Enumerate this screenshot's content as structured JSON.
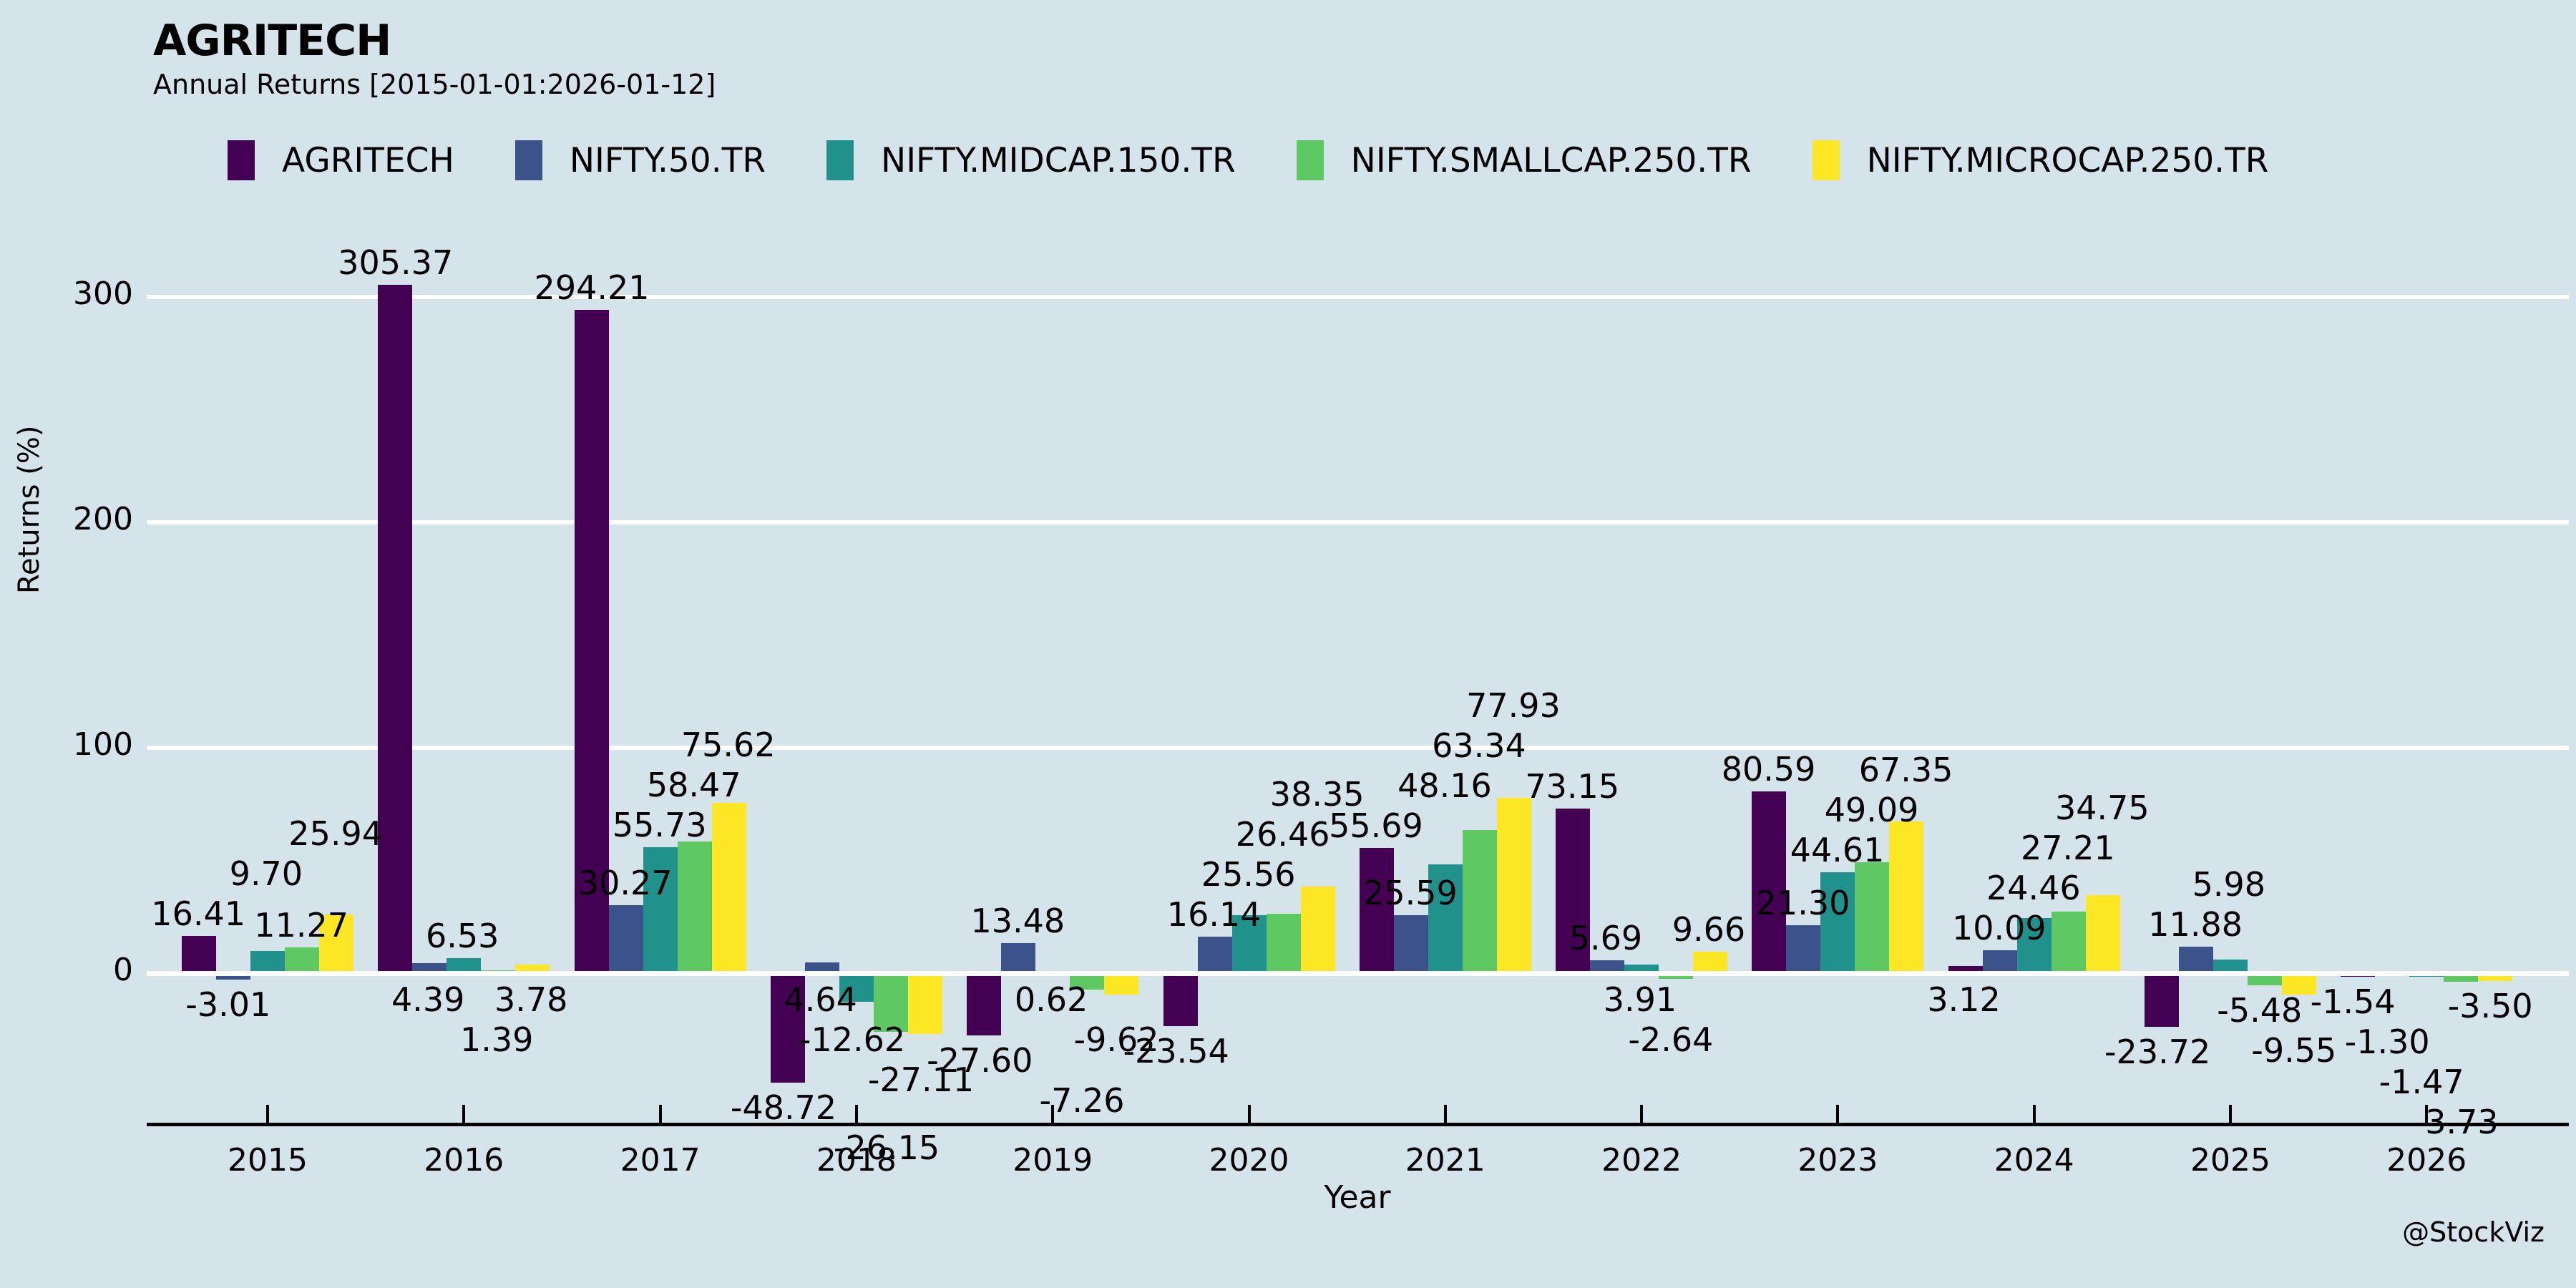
{
  "header": {
    "title": "AGRITECH",
    "subtitle": "Annual Returns [2015-01-01:2026-01-12]"
  },
  "watermark": "@StockViz",
  "colors": {
    "background": "#d5e3ea",
    "gridline": "#ffffff",
    "axis": "#000000",
    "text": "#000000"
  },
  "chart_data": {
    "type": "bar",
    "title": "AGRITECH",
    "subtitle": "Annual Returns [2015-01-01:2026-01-12]",
    "xlabel": "Year",
    "ylabel": "Returns (%)",
    "categories": [
      "2015",
      "2016",
      "2017",
      "2018",
      "2019",
      "2020",
      "2021",
      "2022",
      "2023",
      "2024",
      "2025",
      "2026"
    ],
    "yticks": [
      0,
      100,
      200,
      300
    ],
    "ylim": [
      -67,
      327
    ],
    "grid": "horizontal white gridlines, white zero line drawn over bars",
    "legend_position": "top",
    "value_labels": "every bar labeled with value to 2 decimals",
    "series": [
      {
        "name": "AGRITECH",
        "color": "#440154",
        "values": [
          16.41,
          305.37,
          294.21,
          -48.72,
          -27.6,
          -23.54,
          55.69,
          73.15,
          80.59,
          3.12,
          -23.72,
          -1.54
        ]
      },
      {
        "name": "NIFTY.50.TR",
        "color": "#3b528b",
        "values": [
          -3.01,
          4.39,
          30.27,
          4.64,
          13.48,
          16.14,
          25.59,
          5.69,
          21.3,
          10.09,
          11.88,
          -1.3
        ]
      },
      {
        "name": "NIFTY.MIDCAP.150.TR",
        "color": "#21918c",
        "values": [
          9.7,
          6.53,
          55.73,
          -12.62,
          0.62,
          25.56,
          48.16,
          3.91,
          44.61,
          24.46,
          5.98,
          -1.47
        ]
      },
      {
        "name": "NIFTY.SMALLCAP.250.TR",
        "color": "#5ec962",
        "values": [
          11.27,
          1.39,
          58.47,
          -26.15,
          -7.26,
          26.46,
          63.34,
          -2.64,
          49.09,
          27.21,
          -5.48,
          -3.73
        ]
      },
      {
        "name": "NIFTY.MICROCAP.250.TR",
        "color": "#fde725",
        "values": [
          25.94,
          3.78,
          75.62,
          -27.11,
          -9.62,
          38.35,
          77.93,
          9.66,
          67.35,
          34.75,
          -9.55,
          -3.5
        ]
      }
    ]
  }
}
